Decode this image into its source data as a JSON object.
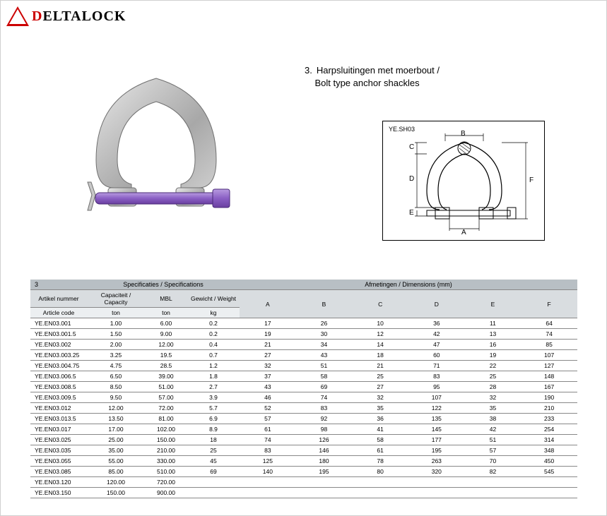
{
  "logo": {
    "text_prefix": "D",
    "text_rest": "ELTALOCK",
    "accent_color": "#c00000"
  },
  "title": {
    "number": "3.",
    "line1": "Harpsluitingen met moerbout /",
    "line2": "Bolt type anchor shackles"
  },
  "diagram": {
    "code": "YE.SH03",
    "labels": {
      "A": "A",
      "B": "B",
      "C": "C",
      "D": "D",
      "E": "E",
      "F": "F"
    }
  },
  "table": {
    "section_number": "3",
    "hdr_specs": "Specificaties / Specifications",
    "hdr_dims": "Afmetingen / Dimensions (mm)",
    "col_article_1": "Artikel nummer",
    "col_article_2": "Article code",
    "col_capacity_1": "Capaciteit / Capacity",
    "col_capacity_2": "ton",
    "col_mbl_1": "MBL",
    "col_mbl_2": "ton",
    "col_weight_1": "Gewicht / Weight",
    "col_weight_2": "kg",
    "dim_cols": [
      "A",
      "B",
      "C",
      "D",
      "E",
      "F"
    ],
    "rows": [
      {
        "code": "YE.EN03.001",
        "cap": "1.00",
        "mbl": "6.00",
        "wt": "0.2",
        "A": "17",
        "B": "26",
        "C": "10",
        "D": "36",
        "E": "11",
        "F": "64"
      },
      {
        "code": "YE.EN03.001.5",
        "cap": "1.50",
        "mbl": "9.00",
        "wt": "0.2",
        "A": "19",
        "B": "30",
        "C": "12",
        "D": "42",
        "E": "13",
        "F": "74"
      },
      {
        "code": "YE.EN03.002",
        "cap": "2.00",
        "mbl": "12.00",
        "wt": "0.4",
        "A": "21",
        "B": "34",
        "C": "14",
        "D": "47",
        "E": "16",
        "F": "85"
      },
      {
        "code": "YE.EN03.003.25",
        "cap": "3.25",
        "mbl": "19.5",
        "wt": "0.7",
        "A": "27",
        "B": "43",
        "C": "18",
        "D": "60",
        "E": "19",
        "F": "107"
      },
      {
        "code": "YE.EN03.004.75",
        "cap": "4.75",
        "mbl": "28.5",
        "wt": "1.2",
        "A": "32",
        "B": "51",
        "C": "21",
        "D": "71",
        "E": "22",
        "F": "127"
      },
      {
        "code": "YE.EN03.006.5",
        "cap": "6.50",
        "mbl": "39.00",
        "wt": "1.8",
        "A": "37",
        "B": "58",
        "C": "25",
        "D": "83",
        "E": "25",
        "F": "148"
      },
      {
        "code": "YE.EN03.008.5",
        "cap": "8.50",
        "mbl": "51.00",
        "wt": "2.7",
        "A": "43",
        "B": "69",
        "C": "27",
        "D": "95",
        "E": "28",
        "F": "167"
      },
      {
        "code": "YE.EN03.009.5",
        "cap": "9.50",
        "mbl": "57.00",
        "wt": "3.9",
        "A": "46",
        "B": "74",
        "C": "32",
        "D": "107",
        "E": "32",
        "F": "190"
      },
      {
        "code": "YE.EN03.012",
        "cap": "12.00",
        "mbl": "72.00",
        "wt": "5.7",
        "A": "52",
        "B": "83",
        "C": "35",
        "D": "122",
        "E": "35",
        "F": "210"
      },
      {
        "code": "YE.EN03.013.5",
        "cap": "13.50",
        "mbl": "81.00",
        "wt": "6.9",
        "A": "57",
        "B": "92",
        "C": "36",
        "D": "135",
        "E": "38",
        "F": "233"
      },
      {
        "code": "YE.EN03.017",
        "cap": "17.00",
        "mbl": "102.00",
        "wt": "8.9",
        "A": "61",
        "B": "98",
        "C": "41",
        "D": "145",
        "E": "42",
        "F": "254"
      },
      {
        "code": "YE.EN03.025",
        "cap": "25.00",
        "mbl": "150.00",
        "wt": "18",
        "A": "74",
        "B": "126",
        "C": "58",
        "D": "177",
        "E": "51",
        "F": "314"
      },
      {
        "code": "YE.EN03.035",
        "cap": "35.00",
        "mbl": "210.00",
        "wt": "25",
        "A": "83",
        "B": "146",
        "C": "61",
        "D": "195",
        "E": "57",
        "F": "348"
      },
      {
        "code": "YE.EN03.055",
        "cap": "55.00",
        "mbl": "330.00",
        "wt": "45",
        "A": "125",
        "B": "180",
        "C": "78",
        "D": "263",
        "E": "70",
        "F": "450"
      },
      {
        "code": "YE.EN03.085",
        "cap": "85.00",
        "mbl": "510.00",
        "wt": "69",
        "A": "140",
        "B": "195",
        "C": "80",
        "D": "320",
        "E": "82",
        "F": "545"
      },
      {
        "code": "YE.EN03.120",
        "cap": "120.00",
        "mbl": "720.00",
        "wt": "",
        "A": "",
        "B": "",
        "C": "",
        "D": "",
        "E": "",
        "F": ""
      },
      {
        "code": "YE.EN03.150",
        "cap": "150.00",
        "mbl": "900.00",
        "wt": "",
        "A": "",
        "B": "",
        "C": "",
        "D": "",
        "E": "",
        "F": ""
      }
    ]
  },
  "colors": {
    "header_dark": "#b8bfc4",
    "header_mid": "#d9dde0",
    "header_light": "#eceff1",
    "shackle_body": "#b8b8b8",
    "shackle_bolt": "#9370c8",
    "text": "#000000",
    "background": "#ffffff",
    "border": "#888888"
  }
}
